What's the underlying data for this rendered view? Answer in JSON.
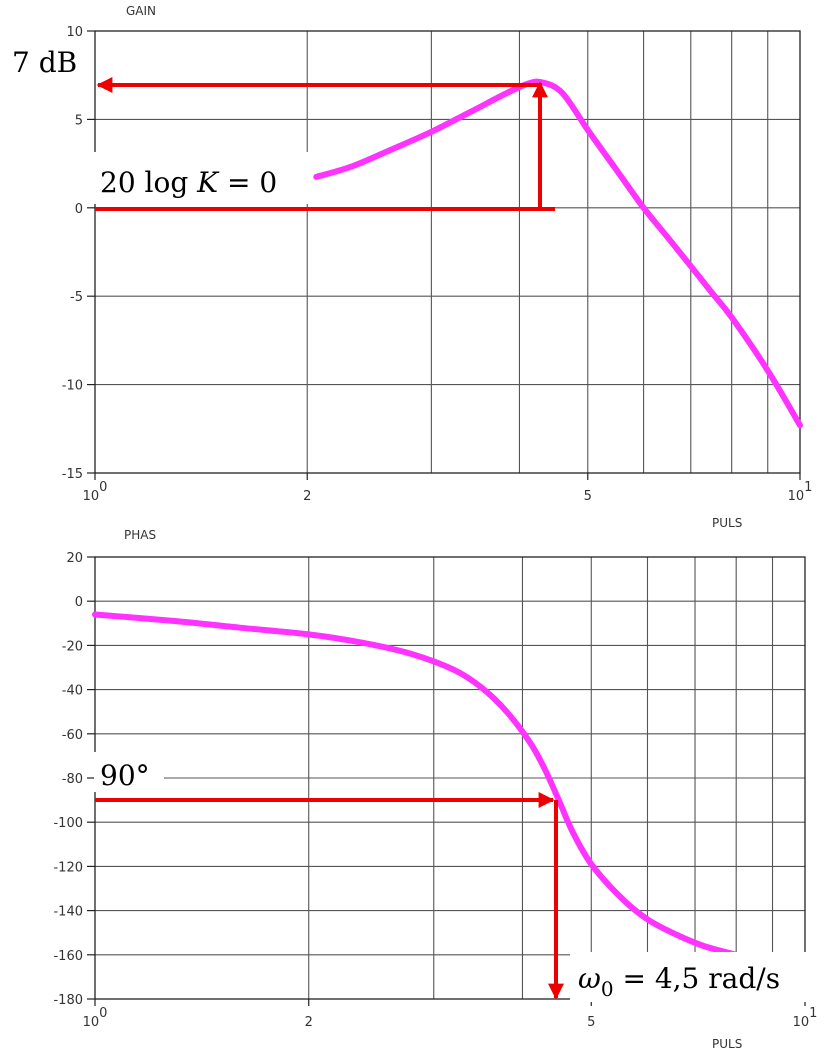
{
  "chart_data": [
    {
      "type": "line",
      "title": "GAIN",
      "xlabel": "PULS",
      "ylabel": "",
      "x_scale": "log",
      "xlim": [
        1,
        10
      ],
      "ylim": [
        -15,
        10
      ],
      "x_ticks": [
        {
          "value": 1,
          "base": "10",
          "exp": "0"
        },
        {
          "value": 2,
          "label": "2"
        },
        {
          "value": 5,
          "label": "5"
        },
        {
          "value": 10,
          "base": "10",
          "exp": "1"
        }
      ],
      "y_ticks": [
        {
          "value": 10,
          "label": "10"
        },
        {
          "value": 5,
          "label": "5"
        },
        {
          "value": 0,
          "label": "0"
        },
        {
          "value": -5,
          "label": "-5"
        },
        {
          "value": -10,
          "label": "-10"
        },
        {
          "value": -15,
          "label": "-15"
        }
      ],
      "grid": true,
      "series": [
        {
          "color": "#ff33ff",
          "x": [
            2.06,
            2.3,
            2.6,
            3.0,
            3.4,
            3.8,
            4.1,
            4.3,
            4.6,
            5.0,
            5.5,
            6.0,
            6.5,
            7.0,
            7.5,
            8.0,
            9.0,
            10.0
          ],
          "y": [
            1.75,
            2.3,
            3.2,
            4.3,
            5.4,
            6.4,
            7.0,
            7.1,
            6.5,
            4.4,
            2.1,
            0.0,
            -1.7,
            -3.3,
            -4.8,
            -6.2,
            -9.2,
            -12.3
          ]
        }
      ],
      "annotations": [
        {
          "text": "7 dB",
          "value": 7
        },
        {
          "text": "20 log K = 0",
          "value": 0
        }
      ]
    },
    {
      "type": "line",
      "title": "PHAS",
      "xlabel": "PULS",
      "ylabel": "",
      "x_scale": "log",
      "xlim": [
        1,
        10
      ],
      "ylim": [
        -180,
        20
      ],
      "x_ticks": [
        {
          "value": 1,
          "base": "10",
          "exp": "0"
        },
        {
          "value": 2,
          "label": "2"
        },
        {
          "value": 5,
          "label": "5"
        },
        {
          "value": 10,
          "base": "10",
          "exp": "1"
        }
      ],
      "y_ticks": [
        {
          "value": 20,
          "label": "20"
        },
        {
          "value": 0,
          "label": "0"
        },
        {
          "value": -20,
          "label": "-20"
        },
        {
          "value": -40,
          "label": "-40"
        },
        {
          "value": -60,
          "label": "-60"
        },
        {
          "value": -80,
          "label": "-80"
        },
        {
          "value": -100,
          "label": "-100"
        },
        {
          "value": -120,
          "label": "-120"
        },
        {
          "value": -140,
          "label": "-140"
        },
        {
          "value": -160,
          "label": "-160"
        },
        {
          "value": -180,
          "label": "-180"
        }
      ],
      "grid": true,
      "series": [
        {
          "color": "#ff33ff",
          "x": [
            1.0,
            1.3,
            1.6,
            2.0,
            2.4,
            2.8,
            3.2,
            3.5,
            3.8,
            4.1,
            4.3,
            4.5,
            4.7,
            5.0,
            5.5,
            6.0,
            6.6,
            7.2,
            8.0
          ],
          "y": [
            -6,
            -9,
            -12,
            -15,
            -19,
            -24,
            -31,
            -39,
            -50,
            -64,
            -76,
            -90,
            -104,
            -119,
            -134,
            -144,
            -151,
            -156,
            -160
          ]
        }
      ],
      "annotations": [
        {
          "text": "90°",
          "value": -90
        },
        {
          "text": "ω0 = 4,5 rad/s",
          "value": 4.5
        }
      ]
    }
  ],
  "annotation_color": "#ee0000"
}
